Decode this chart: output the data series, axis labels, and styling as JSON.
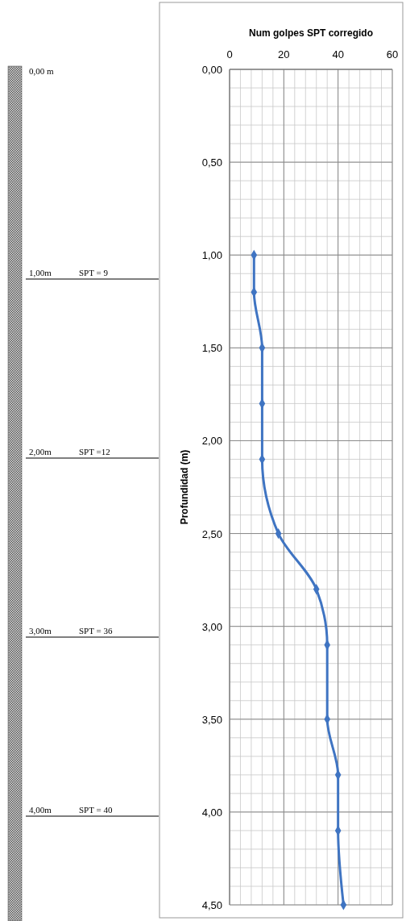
{
  "chart_data": {
    "type": "line",
    "title": "Num golpes SPT corregido",
    "ylabel": "Profundidad (m)",
    "x": [
      9,
      9,
      12,
      12,
      12,
      18,
      32,
      36,
      36,
      40,
      40,
      42
    ],
    "series": [
      {
        "color": "#3f74c2",
        "values": [
          1.0,
          1.2,
          1.5,
          1.8,
          2.1,
          2.5,
          2.8,
          3.1,
          3.5,
          3.8,
          4.1,
          4.5
        ]
      }
    ],
    "xlim": [
      0,
      60
    ],
    "xticks": [
      0,
      20,
      40,
      60
    ],
    "ylim": [
      4.5,
      0
    ],
    "yticks": [
      {
        "value": 0,
        "label": "0,00"
      },
      {
        "value": 0.5,
        "label": "0,50"
      },
      {
        "value": 1,
        "label": "1,00"
      },
      {
        "value": 1.5,
        "label": "1,50"
      },
      {
        "value": 2,
        "label": "2,00"
      },
      {
        "value": 2.5,
        "label": "2,50"
      },
      {
        "value": 3,
        "label": "3,00"
      },
      {
        "value": 3.5,
        "label": "3,50"
      },
      {
        "value": 4,
        "label": "4,00"
      },
      {
        "value": 4.5,
        "label": "4,50"
      }
    ],
    "grid": true,
    "marker": "diamond",
    "line_style": "solid",
    "annotations": [
      "0,00 m",
      "1,00m",
      "SPT = 9",
      "2,00m",
      "SPT =12",
      "3,00m",
      "SPT = 36",
      "4,00m",
      "SPT = 40"
    ]
  }
}
